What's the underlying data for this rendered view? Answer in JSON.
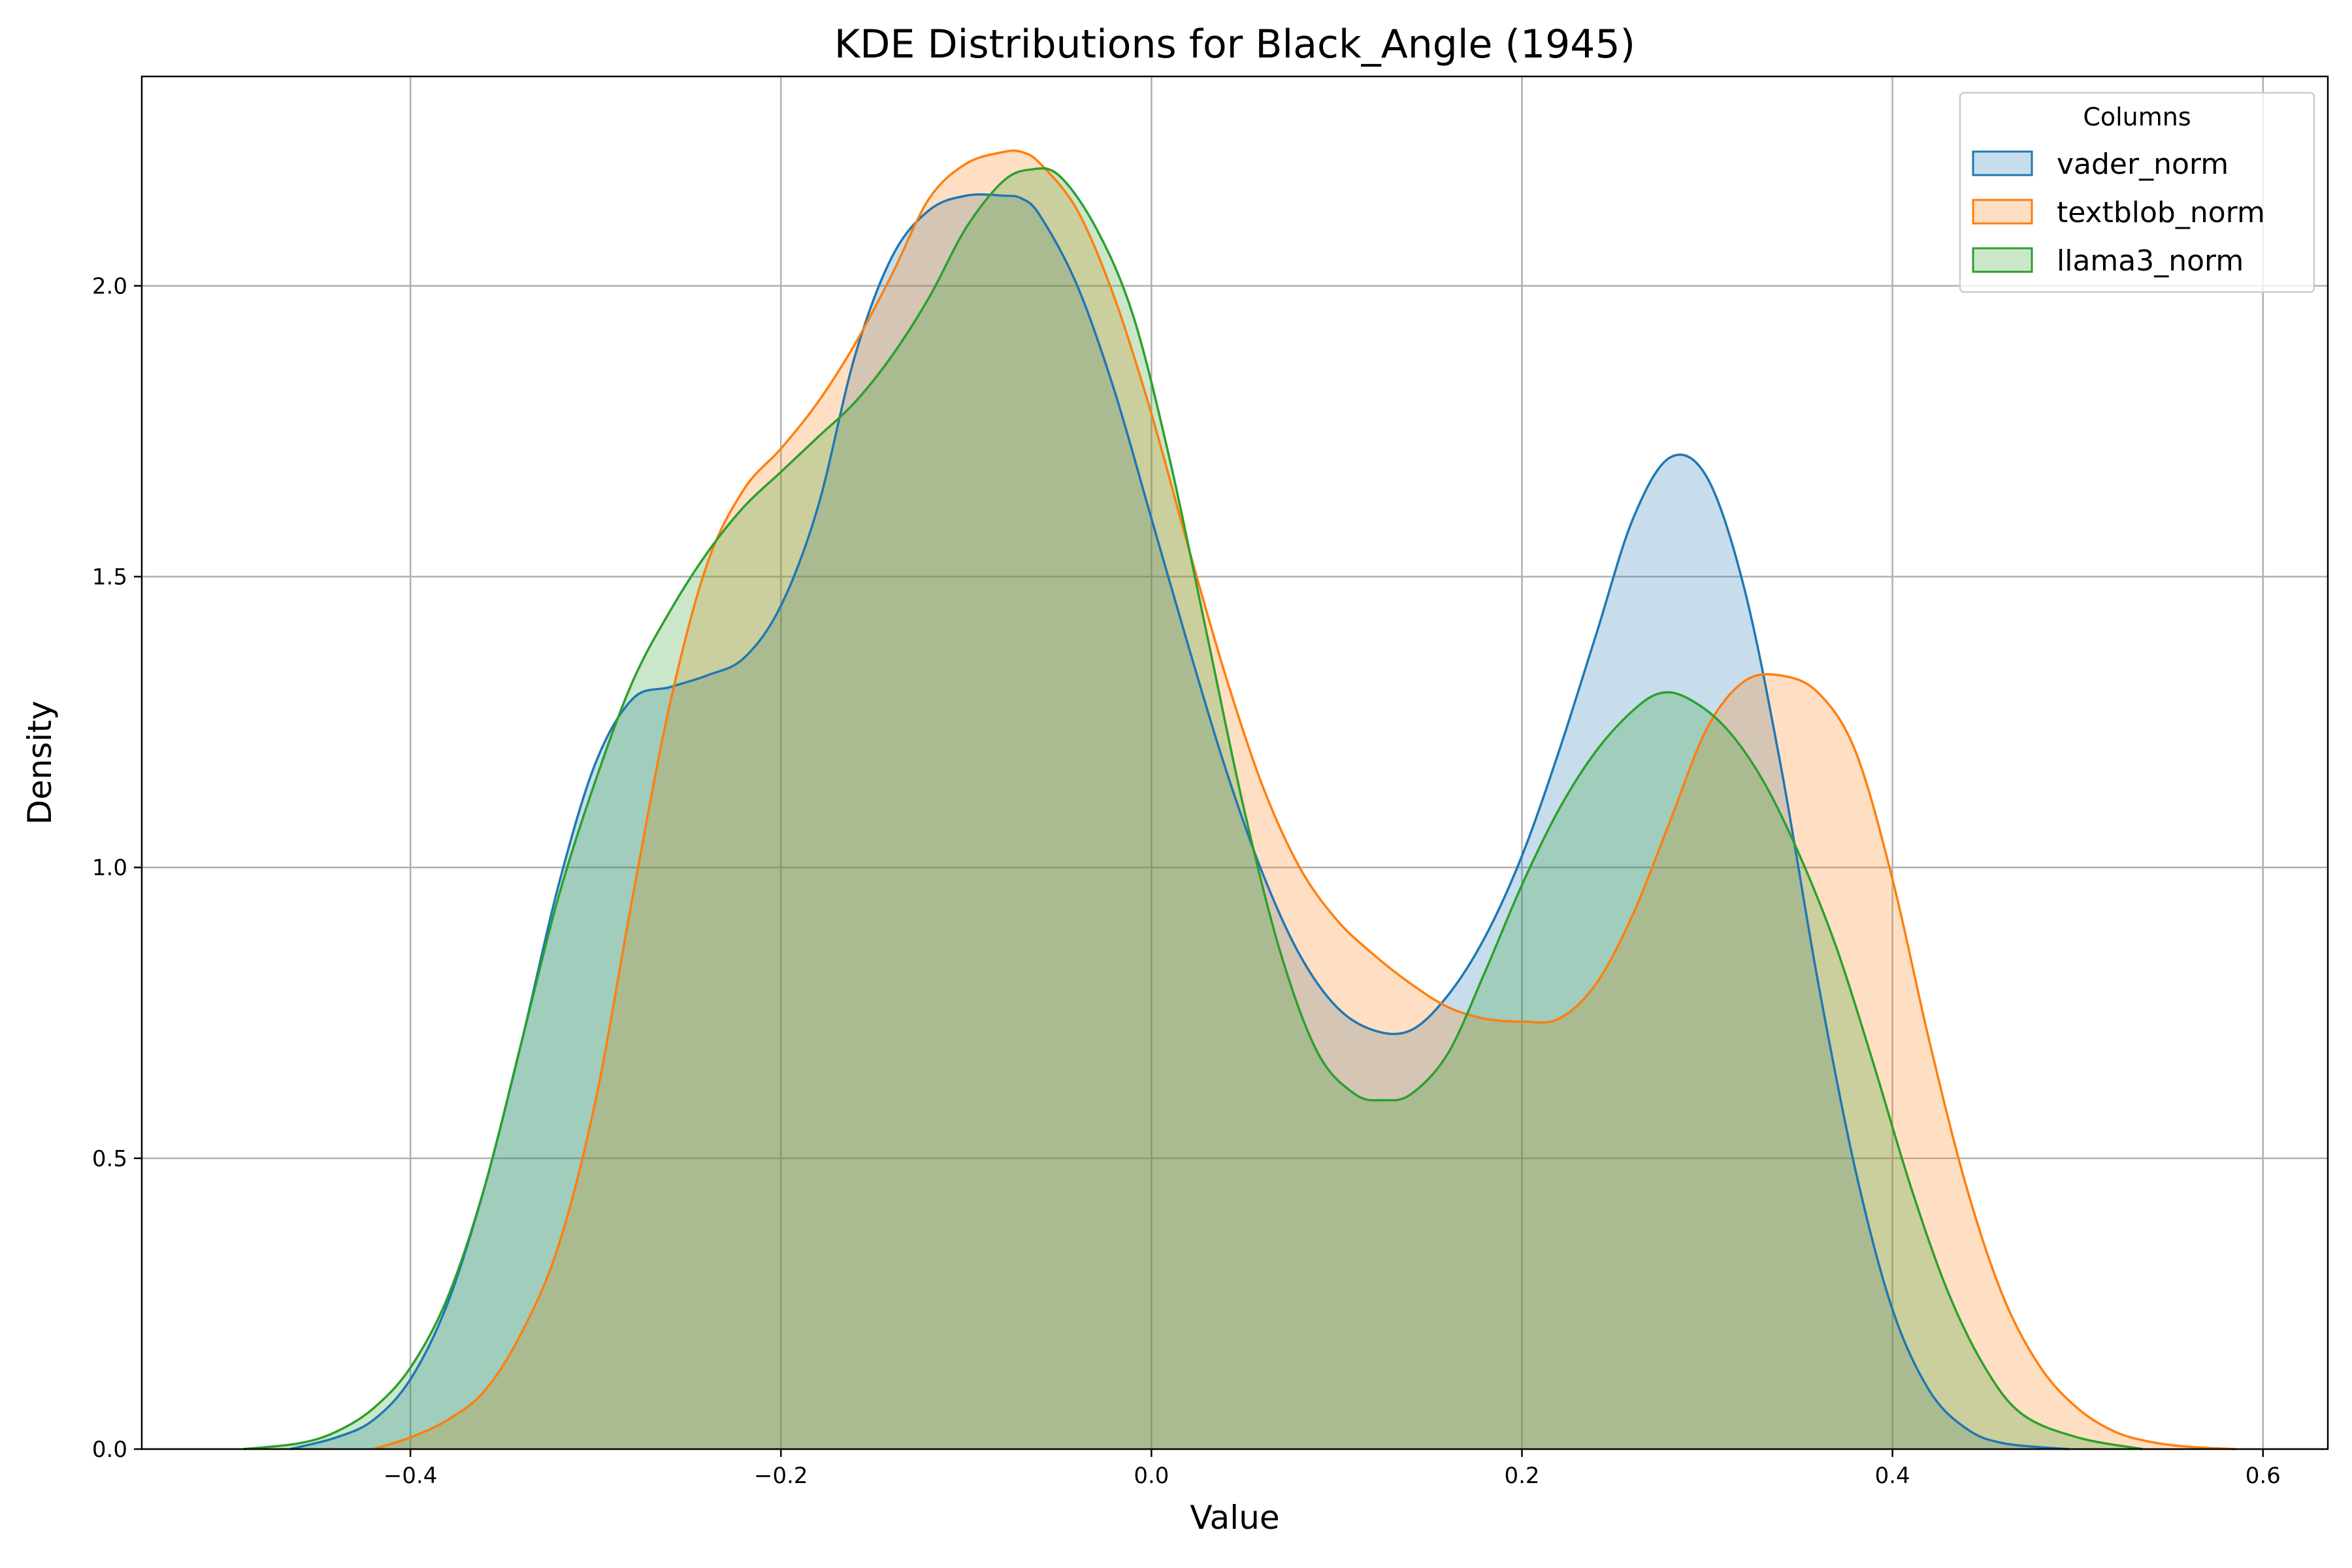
{
  "chart_data": {
    "type": "area",
    "title": "KDE Distributions for Black_Angle (1945)",
    "xlabel": "Value",
    "ylabel": "Density",
    "xlim": [
      -0.545,
      0.635
    ],
    "ylim": [
      0.0,
      2.36
    ],
    "xticks": [
      -0.4,
      -0.2,
      0.0,
      0.2,
      0.4,
      0.6
    ],
    "xtick_labels": [
      "−0.4",
      "−0.2",
      "0.0",
      "0.2",
      "0.4",
      "0.6"
    ],
    "yticks": [
      0.0,
      0.5,
      1.0,
      1.5,
      2.0
    ],
    "ytick_labels": [
      "0.0",
      "0.5",
      "1.0",
      "1.5",
      "2.0"
    ],
    "grid": true,
    "legend": {
      "title": "Columns",
      "placement": "top-right"
    },
    "series": [
      {
        "name": "vader_norm",
        "color": "#1f77b4",
        "x": [
          -0.465,
          -0.44,
          -0.42,
          -0.4,
          -0.38,
          -0.36,
          -0.34,
          -0.32,
          -0.3,
          -0.28,
          -0.26,
          -0.24,
          -0.22,
          -0.2,
          -0.18,
          -0.16,
          -0.14,
          -0.12,
          -0.1,
          -0.08,
          -0.07,
          -0.06,
          -0.04,
          -0.02,
          0.0,
          0.02,
          0.04,
          0.06,
          0.08,
          0.1,
          0.12,
          0.14,
          0.16,
          0.18,
          0.2,
          0.22,
          0.24,
          0.26,
          0.28,
          0.3,
          0.32,
          0.34,
          0.36,
          0.38,
          0.4,
          0.42,
          0.44,
          0.46,
          0.495
        ],
        "y": [
          0.0,
          0.02,
          0.05,
          0.12,
          0.25,
          0.45,
          0.7,
          0.97,
          1.18,
          1.29,
          1.31,
          1.33,
          1.36,
          1.45,
          1.62,
          1.88,
          2.05,
          2.13,
          2.155,
          2.155,
          2.15,
          2.12,
          2.0,
          1.82,
          1.6,
          1.38,
          1.17,
          0.99,
          0.85,
          0.76,
          0.72,
          0.72,
          0.78,
          0.88,
          1.02,
          1.2,
          1.4,
          1.6,
          1.705,
          1.67,
          1.48,
          1.17,
          0.8,
          0.48,
          0.24,
          0.1,
          0.035,
          0.01,
          0.0
        ]
      },
      {
        "name": "textblob_norm",
        "color": "#ff7f0e",
        "x": [
          -0.42,
          -0.4,
          -0.38,
          -0.36,
          -0.34,
          -0.32,
          -0.3,
          -0.28,
          -0.26,
          -0.24,
          -0.22,
          -0.2,
          -0.18,
          -0.16,
          -0.14,
          -0.12,
          -0.1,
          -0.08,
          -0.07,
          -0.06,
          -0.04,
          -0.02,
          0.0,
          0.02,
          0.04,
          0.06,
          0.08,
          0.1,
          0.12,
          0.14,
          0.16,
          0.18,
          0.2,
          0.22,
          0.24,
          0.26,
          0.28,
          0.3,
          0.32,
          0.34,
          0.36,
          0.38,
          0.4,
          0.42,
          0.44,
          0.46,
          0.48,
          0.5,
          0.52,
          0.54,
          0.56,
          0.585
        ],
        "y": [
          0.0,
          0.02,
          0.05,
          0.1,
          0.2,
          0.35,
          0.6,
          0.95,
          1.28,
          1.52,
          1.65,
          1.72,
          1.8,
          1.9,
          2.02,
          2.15,
          2.21,
          2.23,
          2.23,
          2.21,
          2.13,
          1.98,
          1.78,
          1.55,
          1.33,
          1.14,
          1.0,
          0.91,
          0.85,
          0.8,
          0.76,
          0.74,
          0.735,
          0.74,
          0.8,
          0.92,
          1.08,
          1.24,
          1.32,
          1.33,
          1.3,
          1.2,
          0.98,
          0.7,
          0.45,
          0.26,
          0.14,
          0.07,
          0.03,
          0.012,
          0.004,
          0.0
        ]
      },
      {
        "name": "llama3_norm",
        "color": "#2ca02c",
        "x": [
          -0.49,
          -0.46,
          -0.44,
          -0.42,
          -0.4,
          -0.38,
          -0.36,
          -0.34,
          -0.32,
          -0.3,
          -0.28,
          -0.26,
          -0.24,
          -0.22,
          -0.2,
          -0.18,
          -0.16,
          -0.14,
          -0.12,
          -0.1,
          -0.08,
          -0.065,
          -0.05,
          -0.03,
          -0.01,
          0.01,
          0.03,
          0.05,
          0.07,
          0.09,
          0.11,
          0.125,
          0.14,
          0.16,
          0.18,
          0.2,
          0.22,
          0.24,
          0.26,
          0.275,
          0.29,
          0.31,
          0.33,
          0.35,
          0.37,
          0.39,
          0.41,
          0.43,
          0.45,
          0.47,
          0.5,
          0.535
        ],
        "y": [
          0.0,
          0.01,
          0.03,
          0.07,
          0.14,
          0.26,
          0.45,
          0.7,
          0.95,
          1.15,
          1.32,
          1.44,
          1.54,
          1.62,
          1.68,
          1.74,
          1.8,
          1.88,
          1.98,
          2.1,
          2.18,
          2.2,
          2.19,
          2.1,
          1.95,
          1.7,
          1.4,
          1.1,
          0.85,
          0.68,
          0.61,
          0.6,
          0.61,
          0.68,
          0.82,
          0.97,
          1.1,
          1.2,
          1.27,
          1.3,
          1.29,
          1.24,
          1.15,
          1.02,
          0.86,
          0.66,
          0.45,
          0.27,
          0.14,
          0.06,
          0.02,
          0.0
        ]
      }
    ]
  }
}
